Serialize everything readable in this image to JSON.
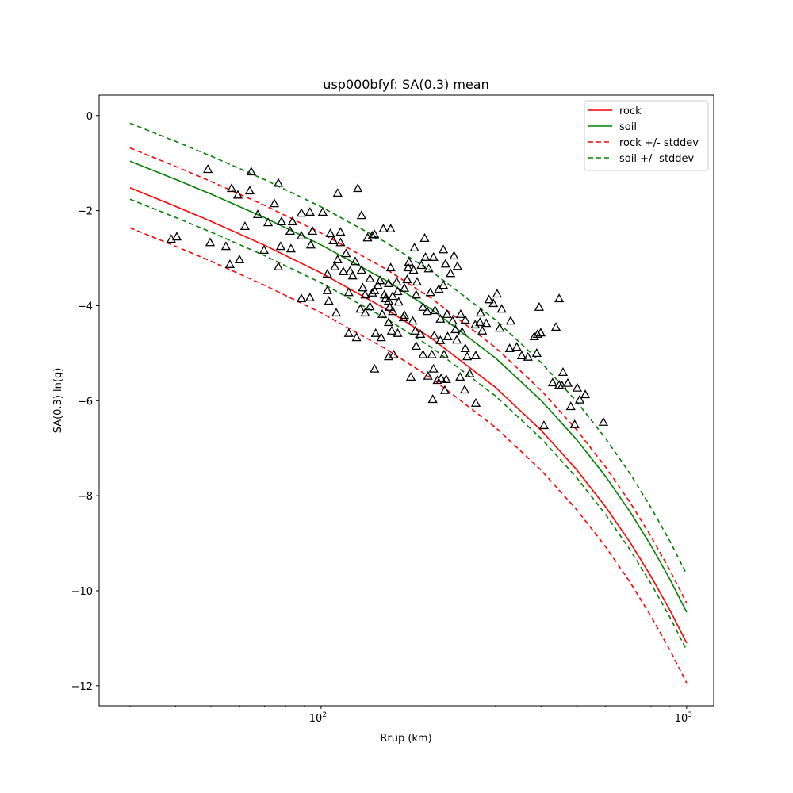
{
  "chart_data": {
    "type": "line",
    "title": "usp000bfyf: SA(0.3) mean",
    "xlabel": "Rrup (km)",
    "ylabel": "SA(0.3) ln(g)",
    "xscale": "log",
    "xlim": [
      24.7,
      1186
    ],
    "ylim": [
      -12.42,
      0.43
    ],
    "xticks": [
      {
        "value": 100,
        "base": "10",
        "exp": "2"
      },
      {
        "value": 1000,
        "base": "10",
        "exp": "3"
      }
    ],
    "yticks": [
      0,
      -2,
      -4,
      -6,
      -8,
      -10,
      -12
    ],
    "ytick_labels": [
      "0",
      "−2",
      "−4",
      "−6",
      "−8",
      "−10",
      "−12"
    ],
    "grid": false,
    "legend_position": "top-right",
    "legend": [
      {
        "label": "rock",
        "color": "#ff0000",
        "style": "solid"
      },
      {
        "label": "soil",
        "color": "#008000",
        "style": "solid"
      },
      {
        "label": "rock +/- stddev",
        "color": "#ff0000",
        "style": "dashed"
      },
      {
        "label": "soil +/- stddev",
        "color": "#008000",
        "style": "dashed"
      }
    ],
    "x": [
      30,
      40,
      50,
      70,
      100,
      150,
      200,
      300,
      400,
      500,
      600,
      700,
      800,
      900,
      1000
    ],
    "series": [
      {
        "name": "rock",
        "color": "#ff0000",
        "stddev": 0.84,
        "values": [
          -1.52,
          -1.91,
          -2.225,
          -2.728,
          -3.311,
          -4.065,
          -4.681,
          -5.72,
          -6.623,
          -7.451,
          -8.231,
          -8.979,
          -9.703,
          -10.408,
          -11.1
        ]
      },
      {
        "name": "soil",
        "color": "#008000",
        "stddev": 0.8,
        "values": [
          -0.96,
          -1.343,
          -1.652,
          -2.146,
          -2.72,
          -3.463,
          -4.072,
          -5.1,
          -5.995,
          -6.817,
          -7.592,
          -8.336,
          -9.056,
          -9.758,
          -10.45
        ]
      }
    ],
    "observations": {
      "marker": "triangle-open",
      "points": [
        [
          49,
          -1.13
        ],
        [
          64.4,
          -1.18
        ],
        [
          76.4,
          -1.42
        ],
        [
          56.9,
          -1.53
        ],
        [
          63.8,
          -1.58
        ],
        [
          59.2,
          -1.67
        ],
        [
          111,
          -1.63
        ],
        [
          126,
          -1.53
        ],
        [
          74.5,
          -1.85
        ],
        [
          67.1,
          -2.08
        ],
        [
          101,
          -2.03
        ],
        [
          129,
          -2.1
        ],
        [
          88.3,
          -2.05
        ],
        [
          93.2,
          -2.03
        ],
        [
          71.6,
          -2.25
        ],
        [
          83.5,
          -2.23
        ],
        [
          77.9,
          -2.23
        ],
        [
          61.9,
          -2.33
        ],
        [
          54.9,
          -2.75
        ],
        [
          56.3,
          -3.13
        ],
        [
          38.9,
          -2.6
        ],
        [
          40.3,
          -2.55
        ],
        [
          49.7,
          -2.67
        ],
        [
          59.8,
          -3.03
        ],
        [
          69.8,
          -2.83
        ],
        [
          76.4,
          -3.18
        ],
        [
          82.3,
          -2.43
        ],
        [
          94.7,
          -2.43
        ],
        [
          93.7,
          -2.72
        ],
        [
          106,
          -2.48
        ],
        [
          113,
          -2.45
        ],
        [
          108,
          -2.63
        ],
        [
          113,
          -2.67
        ],
        [
          82.7,
          -2.8
        ],
        [
          77.5,
          -2.75
        ],
        [
          88.3,
          -3.85
        ],
        [
          93.2,
          -3.83
        ],
        [
          104,
          -3.68
        ],
        [
          105,
          -3.9
        ],
        [
          110,
          -4.15
        ],
        [
          120,
          -3.27
        ],
        [
          119,
          -3.72
        ],
        [
          125,
          -4.67
        ],
        [
          119,
          -4.58
        ],
        [
          111,
          -3.03
        ],
        [
          109,
          -3.18
        ],
        [
          104,
          -3.33
        ],
        [
          115,
          -3.28
        ],
        [
          122,
          -3.37
        ],
        [
          130,
          -3.62
        ],
        [
          132,
          -3.77
        ],
        [
          136,
          -4.02
        ],
        [
          140,
          -3.68
        ],
        [
          140,
          -5.33
        ],
        [
          141,
          -4.58
        ],
        [
          147,
          -4.18
        ],
        [
          150,
          -3.85
        ],
        [
          155,
          -3.2
        ],
        [
          136,
          -3.43
        ],
        [
          134,
          -2.57
        ],
        [
          138,
          -2.53
        ],
        [
          140,
          -2.5
        ],
        [
          148,
          -2.38
        ],
        [
          155,
          -2.38
        ],
        [
          129,
          -3.25
        ],
        [
          138,
          -3.73
        ],
        [
          161,
          -3.5
        ],
        [
          153,
          -3.53
        ],
        [
          162,
          -3.7
        ],
        [
          163,
          -3.92
        ],
        [
          169,
          -3.63
        ],
        [
          172,
          -3.45
        ],
        [
          153,
          -4.35
        ],
        [
          154,
          -4.03
        ],
        [
          153,
          -3.9
        ],
        [
          157,
          -3.8
        ],
        [
          157,
          -4.12
        ],
        [
          153,
          -5.07
        ],
        [
          146,
          -4.67
        ],
        [
          156,
          -4.53
        ],
        [
          162,
          -4.58
        ],
        [
          168,
          -4.25
        ],
        [
          158,
          -5.03
        ],
        [
          182,
          -3.77
        ],
        [
          183,
          -3.5
        ],
        [
          179,
          -3.25
        ],
        [
          188,
          -3.15
        ],
        [
          193,
          -2.98
        ],
        [
          174,
          -3.08
        ],
        [
          180,
          -2.78
        ],
        [
          192,
          -2.58
        ],
        [
          203,
          -2.98
        ],
        [
          197,
          -3.22
        ],
        [
          199,
          -3.72
        ],
        [
          190,
          -4.03
        ],
        [
          195,
          -4.12
        ],
        [
          205,
          -4.1
        ],
        [
          212,
          -4.28
        ],
        [
          210,
          -3.65
        ],
        [
          216,
          -3.57
        ],
        [
          221,
          -4.18
        ],
        [
          222,
          -4.65
        ],
        [
          212,
          -4.73
        ],
        [
          204,
          -4.63
        ],
        [
          217,
          -5.03
        ],
        [
          201,
          -5.03
        ],
        [
          190,
          -5.03
        ],
        [
          182,
          -4.85
        ],
        [
          181,
          -4.53
        ],
        [
          178,
          -4.32
        ],
        [
          196,
          -5.48
        ],
        [
          176,
          -5.5
        ],
        [
          202,
          -5.97
        ],
        [
          208,
          -5.57
        ],
        [
          218,
          -5.78
        ],
        [
          220,
          -5.55
        ],
        [
          235,
          -4.72
        ],
        [
          233,
          -4.5
        ],
        [
          229,
          -4.32
        ],
        [
          216,
          -2.82
        ],
        [
          219,
          -3.12
        ],
        [
          231,
          -2.95
        ],
        [
          236,
          -3.17
        ],
        [
          226,
          -3.32
        ],
        [
          241,
          -4.18
        ],
        [
          248,
          -4.3
        ],
        [
          243,
          -4.55
        ],
        [
          248,
          -4.9
        ],
        [
          251,
          -5.07
        ],
        [
          264,
          -4.4
        ],
        [
          272,
          -4.35
        ],
        [
          247,
          -5.77
        ],
        [
          265,
          -5.05
        ],
        [
          283,
          -4.37
        ],
        [
          296,
          -3.95
        ],
        [
          288,
          -3.87
        ],
        [
          312,
          -4.07
        ],
        [
          328,
          -4.9
        ],
        [
          343,
          -4.87
        ],
        [
          354,
          -5.05
        ],
        [
          395,
          -4.03
        ],
        [
          399,
          -4.57
        ],
        [
          439,
          -4.45
        ],
        [
          448,
          -3.85
        ],
        [
          459,
          -5.4
        ],
        [
          473,
          -5.63
        ],
        [
          482,
          -6.12
        ],
        [
          510,
          -5.98
        ],
        [
          494,
          -6.5
        ],
        [
          528,
          -5.87
        ],
        [
          448,
          -5.67
        ],
        [
          383,
          -4.65
        ],
        [
          391,
          -4.6
        ],
        [
          389,
          -5.0
        ],
        [
          368,
          -5.08
        ],
        [
          308,
          -4.47
        ],
        [
          303,
          -3.75
        ],
        [
          330,
          -4.32
        ],
        [
          273,
          -4.15
        ],
        [
          592,
          -6.45
        ],
        [
          407,
          -6.52
        ],
        [
          430,
          -5.62
        ],
        [
          456,
          -5.68
        ],
        [
          502,
          -5.73
        ],
        [
          240,
          -5.5
        ],
        [
          265,
          -6.05
        ],
        [
          276,
          -4.53
        ],
        [
          203,
          -5.33
        ],
        [
          213,
          -5.53
        ],
        [
          255,
          -5.43
        ],
        [
          169,
          -4.2
        ],
        [
          187,
          -4.6
        ],
        [
          173,
          -3.2
        ],
        [
          128,
          -4.07
        ],
        [
          132,
          -4.15
        ],
        [
          145,
          -3.47
        ],
        [
          143,
          -3.57
        ],
        [
          149,
          -3.77
        ],
        [
          88.3,
          -2.53
        ],
        [
          117,
          -2.9
        ],
        [
          124,
          -3.07
        ]
      ]
    }
  }
}
